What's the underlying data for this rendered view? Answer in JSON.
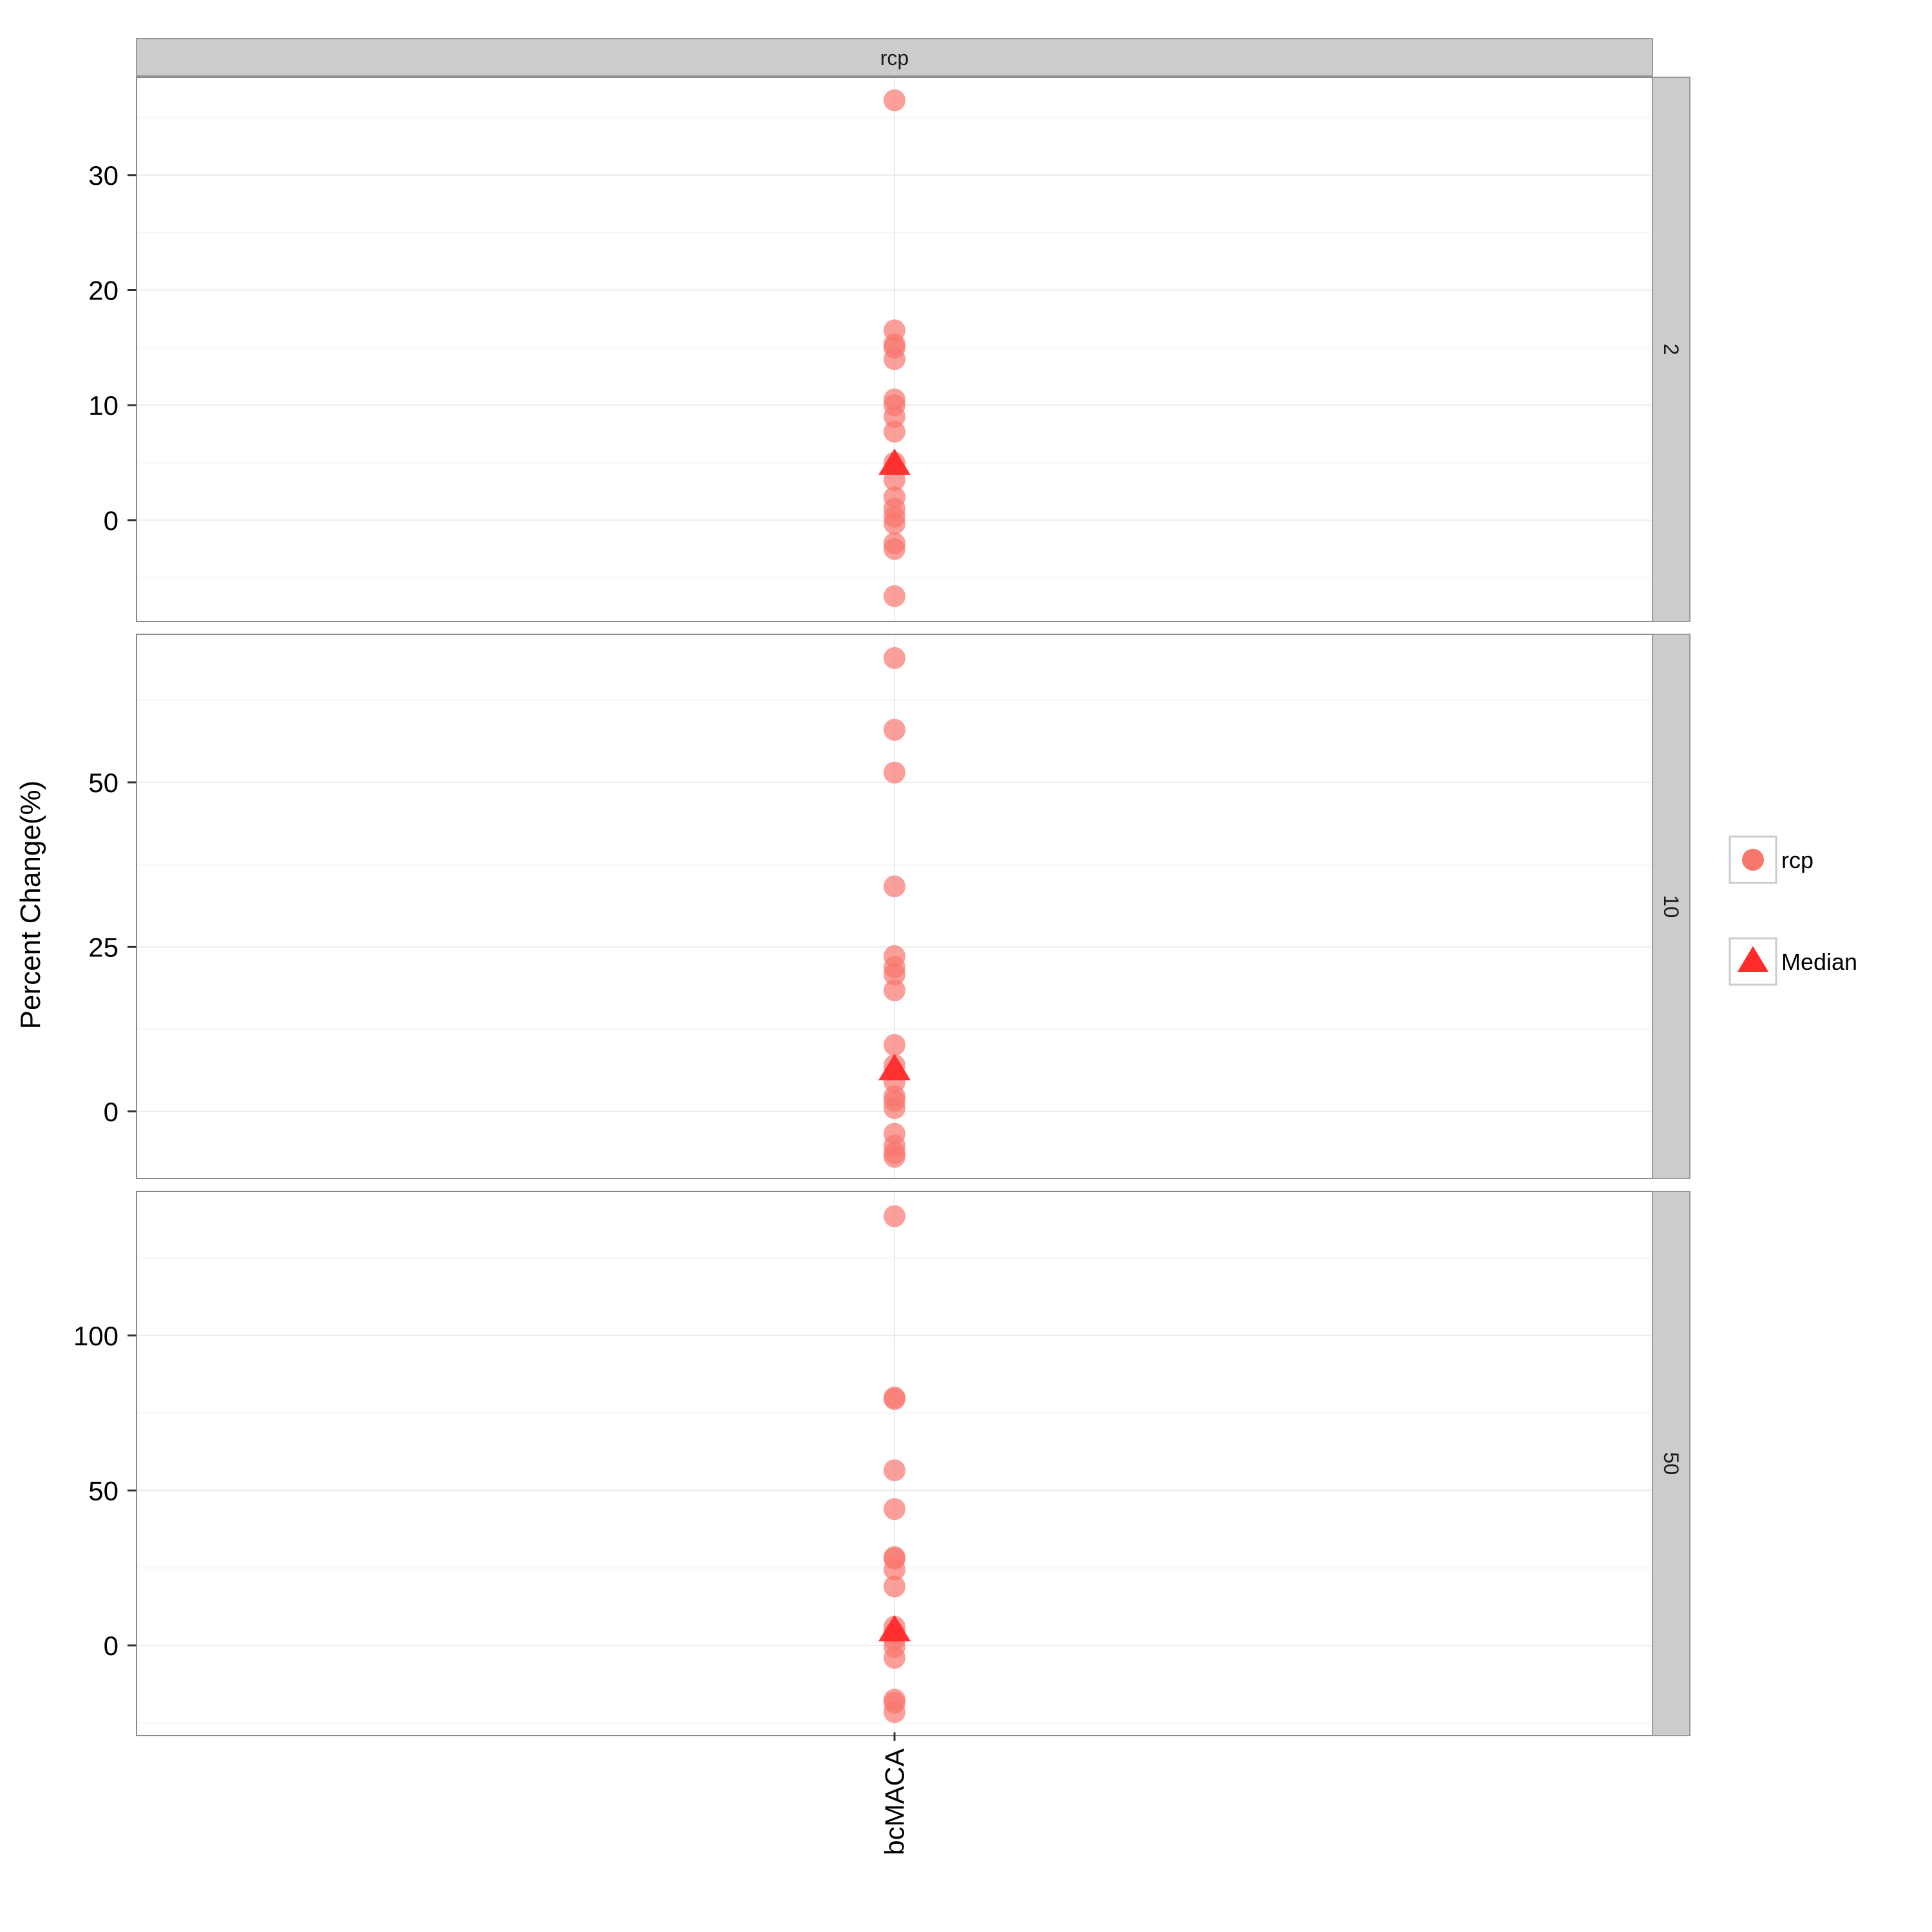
{
  "chart_data": {
    "type": "scatter",
    "facet_column_label": "rcp",
    "ylabel": "Percent Change(%)",
    "xlabel": "",
    "categories": [
      "bcMACA"
    ],
    "legend": {
      "placement": "right",
      "entries": [
        {
          "name": "rcp",
          "shape": "circle",
          "color": "#F8766D"
        },
        {
          "name": "Median",
          "shape": "triangle",
          "color": "#FF2A2A"
        }
      ]
    },
    "grid": true,
    "colors": {
      "points": "#F8766D",
      "median": "#FF2A2A"
    },
    "panels": [
      {
        "strip_label": "2",
        "ylim": [
          -8.8,
          38.5
        ],
        "yticks": [
          0,
          10,
          20,
          30
        ],
        "tick_labels": [
          "0",
          "10",
          "20",
          "30"
        ],
        "category": "bcMACA",
        "values": [
          36.5,
          16.5,
          15.3,
          15.0,
          14.0,
          10.5,
          10.0,
          9.0,
          7.7,
          5.0,
          3.5,
          2.0,
          1.0,
          0.3,
          -0.3,
          -2.0,
          -2.5,
          -6.6
        ],
        "median": 5.0
      },
      {
        "strip_label": "10",
        "ylim": [
          -10.2,
          72.5
        ],
        "yticks": [
          0,
          25,
          50
        ],
        "tick_labels": [
          "0",
          "25",
          "50"
        ],
        "category": "bcMACA",
        "values": [
          68.9,
          58.0,
          51.5,
          34.2,
          23.6,
          21.9,
          20.8,
          18.4,
          10.1,
          7.0,
          4.5,
          2.3,
          1.6,
          0.5,
          -3.4,
          -5.2,
          -6.3,
          -6.9
        ],
        "median": 6.6
      },
      {
        "strip_label": "50",
        "ylim": [
          -29.1,
          146.5
        ],
        "yticks": [
          0,
          50,
          100
        ],
        "tick_labels": [
          "0",
          "50",
          "100"
        ],
        "category": "bcMACA",
        "values": [
          138.5,
          80.0,
          79.5,
          56.5,
          44.0,
          28.5,
          28.0,
          24.5,
          19.0,
          6.0,
          4.0,
          2.0,
          -0.5,
          -4.0,
          -17.5,
          -18.5,
          -21.5
        ],
        "median": 5.3
      }
    ]
  }
}
